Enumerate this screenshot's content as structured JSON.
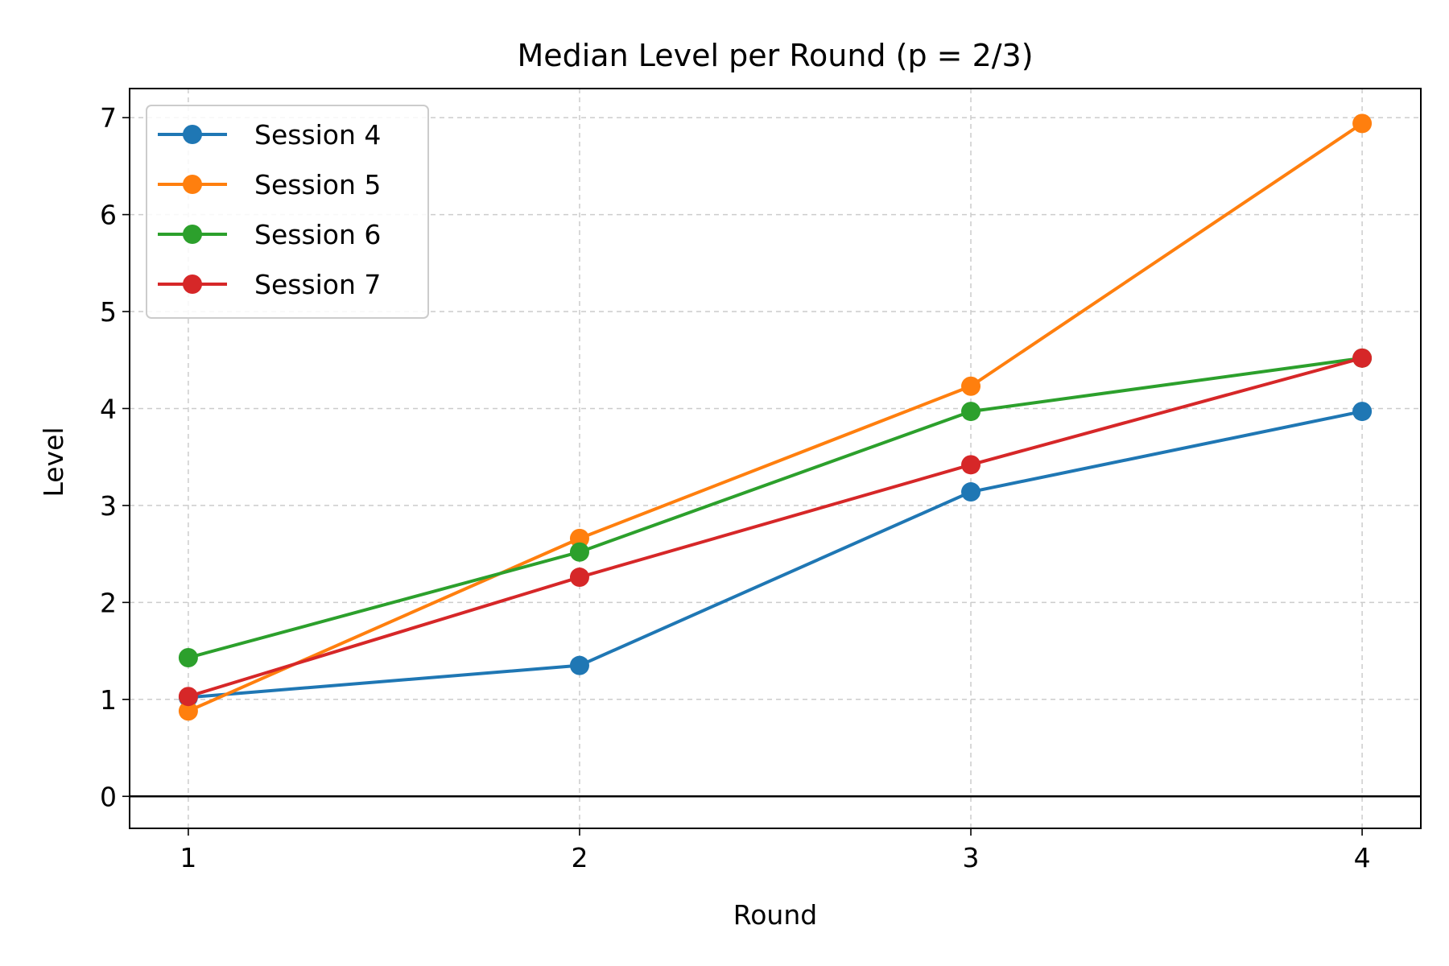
{
  "chart_data": {
    "type": "line",
    "title": "Median Level per Round (p = 2/3)",
    "xlabel": "Round",
    "ylabel": "Level",
    "x": [
      1,
      2,
      3,
      4
    ],
    "xlim": [
      0.85,
      4.15
    ],
    "ylim": [
      -0.33,
      7.3
    ],
    "xticks": [
      1,
      2,
      3,
      4
    ],
    "yticks": [
      0,
      1,
      2,
      3,
      4,
      5,
      6,
      7
    ],
    "grid": true,
    "zero_line": true,
    "legend_position": "top-left",
    "marker": "circle",
    "series": [
      {
        "name": "Session 4",
        "color": "#1f77b4",
        "values": [
          1.02,
          1.35,
          3.14,
          3.97
        ]
      },
      {
        "name": "Session 5",
        "color": "#ff7f0e",
        "values": [
          0.88,
          2.66,
          4.23,
          6.94
        ]
      },
      {
        "name": "Session 6",
        "color": "#2ca02c",
        "values": [
          1.43,
          2.52,
          3.97,
          4.52
        ]
      },
      {
        "name": "Session 7",
        "color": "#d62728",
        "values": [
          1.03,
          2.26,
          3.42,
          4.52
        ]
      }
    ]
  }
}
